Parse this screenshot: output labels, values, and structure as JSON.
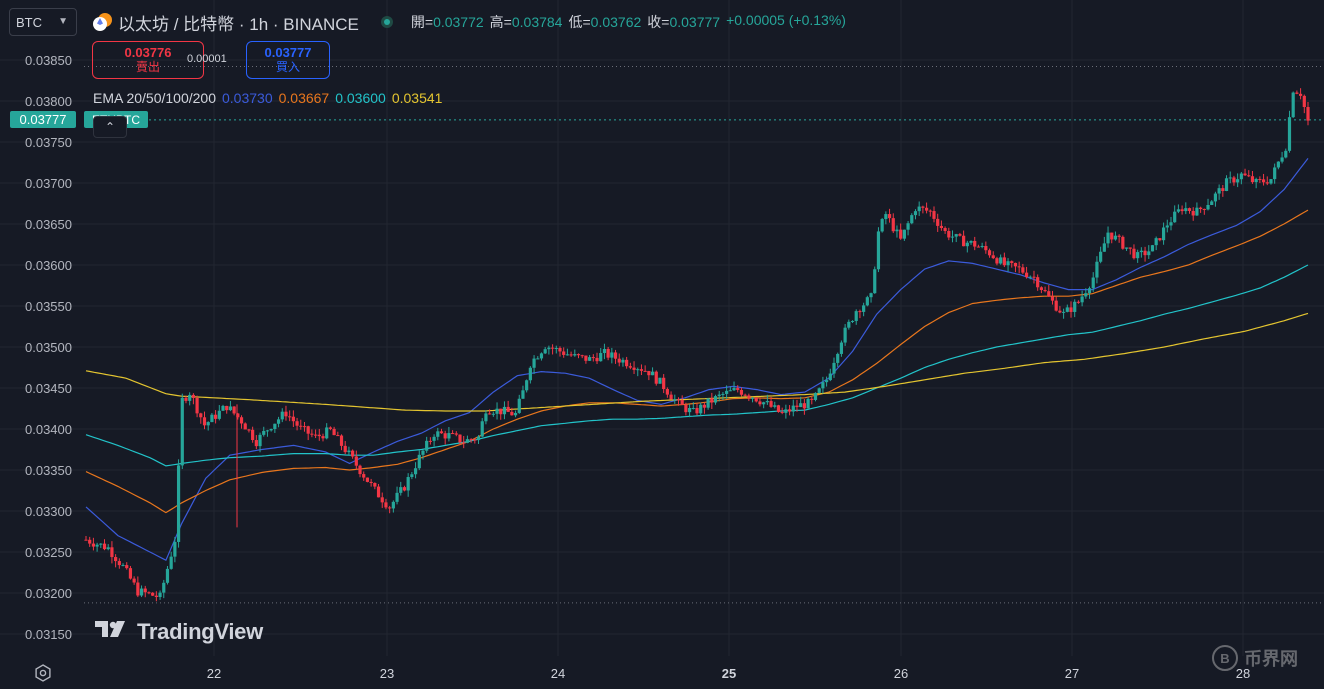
{
  "header": {
    "symbol_select": "BTC",
    "title": "以太坊 / 比特幣 · 1h · BINANCE",
    "ohlc": [
      {
        "label": "開=",
        "value": "0.03772"
      },
      {
        "label": "高=",
        "value": "0.03784"
      },
      {
        "label": "低=",
        "value": "0.03762"
      },
      {
        "label": "收=",
        "value": "0.03777"
      }
    ],
    "change": "+0.00005 (+0.13%)"
  },
  "trade": {
    "sell_price": "0.03776",
    "sell_label": "賣出",
    "spread": "0.00001",
    "buy_price": "0.03777",
    "buy_label": "買入"
  },
  "ema": {
    "label": "EMA 20/50/100/200",
    "values": [
      {
        "value": "0.03730",
        "color": "#3b5bdb"
      },
      {
        "value": "0.03667",
        "color": "#e8761d"
      },
      {
        "value": "0.03600",
        "color": "#22c3c9"
      },
      {
        "value": "0.03541",
        "color": "#e4c530"
      }
    ]
  },
  "current": {
    "price": "0.03777",
    "label": "ETHBTC"
  },
  "branding": {
    "logo_text": "TradingView",
    "watermark_text": "币界网"
  },
  "colors": {
    "up": "#26a69a",
    "down": "#f23645",
    "background": "#161a25",
    "grid": "#222631",
    "axis_text": "#b2b5be"
  },
  "chart_data": {
    "type": "candlestick",
    "yticks": [
      "0.03850",
      "0.03800",
      "0.03750",
      "0.03700",
      "0.03650",
      "0.03600",
      "0.03550",
      "0.03500",
      "0.03450",
      "0.03400",
      "0.03350",
      "0.03300",
      "0.03250",
      "0.03200",
      "0.03150"
    ],
    "ylim": [
      0.0313,
      0.0388
    ],
    "xticks": [
      {
        "label": "22",
        "day": 22,
        "bold": false
      },
      {
        "label": "23",
        "day": 23,
        "bold": false
      },
      {
        "label": "24",
        "day": 24,
        "bold": false
      },
      {
        "label": "25",
        "day": 25,
        "bold": true
      },
      {
        "label": "26",
        "day": 26,
        "bold": false
      },
      {
        "label": "27",
        "day": 27,
        "bold": false
      },
      {
        "label": "28",
        "day": 28,
        "bold": false
      }
    ],
    "xlim_days": [
      21.42,
      22.95
    ],
    "high_line": 0.03842,
    "low_line": 0.03188,
    "current_price": 0.03777,
    "ema_anchors": {
      "ema20": [
        [
          0,
          0.03305
        ],
        [
          8,
          0.0327
        ],
        [
          16,
          0.0325
        ],
        [
          20,
          0.0324
        ],
        [
          24,
          0.03285
        ],
        [
          30,
          0.0334
        ],
        [
          36,
          0.03368
        ],
        [
          44,
          0.03375
        ],
        [
          52,
          0.0338
        ],
        [
          60,
          0.03372
        ],
        [
          66,
          0.03358
        ],
        [
          72,
          0.03372
        ],
        [
          78,
          0.03385
        ],
        [
          84,
          0.03395
        ],
        [
          90,
          0.0341
        ],
        [
          96,
          0.0342
        ],
        [
          102,
          0.03445
        ],
        [
          108,
          0.03465
        ],
        [
          114,
          0.0347
        ],
        [
          120,
          0.03468
        ],
        [
          126,
          0.03462
        ],
        [
          132,
          0.03448
        ],
        [
          138,
          0.03435
        ],
        [
          144,
          0.0343
        ],
        [
          150,
          0.03438
        ],
        [
          156,
          0.03448
        ],
        [
          162,
          0.03452
        ],
        [
          168,
          0.03448
        ],
        [
          174,
          0.03442
        ],
        [
          180,
          0.03445
        ],
        [
          186,
          0.03462
        ],
        [
          192,
          0.03495
        ],
        [
          198,
          0.0354
        ],
        [
          204,
          0.0357
        ],
        [
          210,
          0.03595
        ],
        [
          216,
          0.03605
        ],
        [
          222,
          0.03602
        ],
        [
          228,
          0.03595
        ],
        [
          234,
          0.03588
        ],
        [
          240,
          0.03578
        ],
        [
          246,
          0.0357
        ],
        [
          252,
          0.0357
        ],
        [
          258,
          0.03582
        ],
        [
          264,
          0.03597
        ],
        [
          270,
          0.0361
        ],
        [
          276,
          0.03625
        ],
        [
          282,
          0.03637
        ],
        [
          288,
          0.03648
        ],
        [
          294,
          0.03665
        ],
        [
          300,
          0.03692
        ],
        [
          306,
          0.0373
        ]
      ],
      "ema50": [
        [
          0,
          0.03348
        ],
        [
          8,
          0.0333
        ],
        [
          16,
          0.0331
        ],
        [
          20,
          0.03298
        ],
        [
          24,
          0.0331
        ],
        [
          30,
          0.03325
        ],
        [
          36,
          0.03338
        ],
        [
          44,
          0.03347
        ],
        [
          52,
          0.03352
        ],
        [
          60,
          0.03353
        ],
        [
          66,
          0.0335
        ],
        [
          72,
          0.03353
        ],
        [
          78,
          0.03357
        ],
        [
          84,
          0.03365
        ],
        [
          90,
          0.03375
        ],
        [
          96,
          0.03385
        ],
        [
          102,
          0.034
        ],
        [
          108,
          0.03412
        ],
        [
          114,
          0.03422
        ],
        [
          120,
          0.03428
        ],
        [
          126,
          0.03432
        ],
        [
          132,
          0.03432
        ],
        [
          138,
          0.0343
        ],
        [
          144,
          0.03428
        ],
        [
          150,
          0.0343
        ],
        [
          156,
          0.03433
        ],
        [
          162,
          0.03437
        ],
        [
          168,
          0.03438
        ],
        [
          174,
          0.03437
        ],
        [
          180,
          0.03438
        ],
        [
          186,
          0.03445
        ],
        [
          192,
          0.0346
        ],
        [
          198,
          0.0348
        ],
        [
          204,
          0.03503
        ],
        [
          210,
          0.03525
        ],
        [
          216,
          0.03542
        ],
        [
          222,
          0.03553
        ],
        [
          228,
          0.03557
        ],
        [
          234,
          0.0356
        ],
        [
          240,
          0.03562
        ],
        [
          246,
          0.03562
        ],
        [
          252,
          0.03565
        ],
        [
          258,
          0.03575
        ],
        [
          264,
          0.03585
        ],
        [
          270,
          0.03592
        ],
        [
          276,
          0.036
        ],
        [
          282,
          0.03612
        ],
        [
          288,
          0.03623
        ],
        [
          294,
          0.03635
        ],
        [
          300,
          0.0365
        ],
        [
          306,
          0.03667
        ]
      ],
      "ema100": [
        [
          0,
          0.03393
        ],
        [
          8,
          0.0338
        ],
        [
          16,
          0.03365
        ],
        [
          20,
          0.03355
        ],
        [
          24,
          0.03358
        ],
        [
          30,
          0.03362
        ],
        [
          36,
          0.03365
        ],
        [
          44,
          0.03367
        ],
        [
          52,
          0.0337
        ],
        [
          60,
          0.0337
        ],
        [
          66,
          0.03368
        ],
        [
          72,
          0.03368
        ],
        [
          78,
          0.03372
        ],
        [
          84,
          0.03375
        ],
        [
          90,
          0.0338
        ],
        [
          96,
          0.03385
        ],
        [
          102,
          0.03392
        ],
        [
          108,
          0.03398
        ],
        [
          114,
          0.03404
        ],
        [
          120,
          0.03407
        ],
        [
          126,
          0.0341
        ],
        [
          132,
          0.03412
        ],
        [
          138,
          0.03412
        ],
        [
          144,
          0.03413
        ],
        [
          150,
          0.03415
        ],
        [
          156,
          0.03417
        ],
        [
          162,
          0.03418
        ],
        [
          168,
          0.0342
        ],
        [
          174,
          0.03422
        ],
        [
          180,
          0.03423
        ],
        [
          186,
          0.0343
        ],
        [
          192,
          0.03438
        ],
        [
          198,
          0.0345
        ],
        [
          204,
          0.03462
        ],
        [
          210,
          0.03475
        ],
        [
          216,
          0.03485
        ],
        [
          222,
          0.03493
        ],
        [
          228,
          0.035
        ],
        [
          234,
          0.03505
        ],
        [
          240,
          0.0351
        ],
        [
          246,
          0.03515
        ],
        [
          252,
          0.03518
        ],
        [
          258,
          0.03525
        ],
        [
          264,
          0.03532
        ],
        [
          270,
          0.0354
        ],
        [
          276,
          0.03547
        ],
        [
          282,
          0.03555
        ],
        [
          288,
          0.03563
        ],
        [
          294,
          0.03572
        ],
        [
          300,
          0.03585
        ],
        [
          306,
          0.036
        ]
      ],
      "ema200": [
        [
          0,
          0.03471
        ],
        [
          10,
          0.03462
        ],
        [
          20,
          0.03443
        ],
        [
          24,
          0.0344
        ],
        [
          40,
          0.03436
        ],
        [
          60,
          0.0343
        ],
        [
          80,
          0.03423
        ],
        [
          90,
          0.03422
        ],
        [
          100,
          0.03422
        ],
        [
          110,
          0.03425
        ],
        [
          120,
          0.03428
        ],
        [
          130,
          0.03431
        ],
        [
          140,
          0.03434
        ],
        [
          150,
          0.03436
        ],
        [
          160,
          0.03438
        ],
        [
          170,
          0.0344
        ],
        [
          180,
          0.03442
        ],
        [
          190,
          0.03445
        ],
        [
          200,
          0.03452
        ],
        [
          210,
          0.0346
        ],
        [
          220,
          0.03468
        ],
        [
          230,
          0.03474
        ],
        [
          240,
          0.03481
        ],
        [
          250,
          0.03485
        ],
        [
          260,
          0.03492
        ],
        [
          270,
          0.035
        ],
        [
          280,
          0.0351
        ],
        [
          290,
          0.03519
        ],
        [
          300,
          0.03532
        ],
        [
          306,
          0.03541
        ]
      ]
    },
    "candle_anchors": [
      [
        0,
        0.03265
      ],
      [
        6,
        0.03255
      ],
      [
        10,
        0.03232
      ],
      [
        14,
        0.03202
      ],
      [
        20,
        0.03195
      ],
      [
        24,
        0.03265
      ],
      [
        26,
        0.03435
      ],
      [
        28,
        0.03445
      ],
      [
        32,
        0.03405
      ],
      [
        38,
        0.03428
      ],
      [
        42,
        0.0341
      ],
      [
        46,
        0.03385
      ],
      [
        50,
        0.03405
      ],
      [
        54,
        0.0342
      ],
      [
        58,
        0.034
      ],
      [
        62,
        0.0339
      ],
      [
        66,
        0.03398
      ],
      [
        70,
        0.03375
      ],
      [
        74,
        0.0335
      ],
      [
        78,
        0.03325
      ],
      [
        82,
        0.03305
      ],
      [
        86,
        0.0333
      ],
      [
        90,
        0.03365
      ],
      [
        94,
        0.03395
      ],
      [
        98,
        0.03392
      ],
      [
        102,
        0.03385
      ],
      [
        106,
        0.0339
      ],
      [
        108,
        0.03425
      ],
      [
        112,
        0.03422
      ],
      [
        116,
        0.03418
      ],
      [
        118,
        0.03445
      ],
      [
        120,
        0.0348
      ],
      [
        124,
        0.03502
      ],
      [
        128,
        0.03495
      ],
      [
        132,
        0.03488
      ],
      [
        136,
        0.03485
      ],
      [
        140,
        0.03492
      ],
      [
        144,
        0.03485
      ],
      [
        148,
        0.03478
      ],
      [
        152,
        0.0347
      ],
      [
        156,
        0.03452
      ],
      [
        160,
        0.0343
      ],
      [
        164,
        0.0342
      ],
      [
        168,
        0.03432
      ],
      [
        172,
        0.03442
      ],
      [
        176,
        0.03448
      ],
      [
        180,
        0.0344
      ],
      [
        184,
        0.0343
      ],
      [
        188,
        0.03418
      ],
      [
        192,
        0.03428
      ],
      [
        196,
        0.03432
      ],
      [
        200,
        0.0346
      ],
      [
        204,
        0.0351
      ],
      [
        208,
        0.03545
      ],
      [
        212,
        0.0356
      ],
      [
        214,
        0.0364
      ],
      [
        216,
        0.03662
      ],
      [
        220,
        0.0363
      ],
      [
        224,
        0.0367
      ],
      [
        228,
        0.03665
      ],
      [
        232,
        0.0364
      ],
      [
        236,
        0.0363
      ],
      [
        240,
        0.03625
      ],
      [
        244,
        0.03615
      ],
      [
        248,
        0.036
      ],
      [
        252,
        0.03595
      ],
      [
        256,
        0.03585
      ],
      [
        260,
        0.0356
      ],
      [
        264,
        0.0354
      ],
      [
        268,
        0.03555
      ],
      [
        272,
        0.03585
      ],
      [
        276,
        0.0364
      ],
      [
        280,
        0.03625
      ],
      [
        284,
        0.0361
      ],
      [
        288,
        0.0362
      ],
      [
        292,
        0.0365
      ],
      [
        296,
        0.0367
      ],
      [
        300,
        0.03665
      ],
      [
        304,
        0.0368
      ],
      [
        308,
        0.037
      ],
      [
        312,
        0.0371
      ],
      [
        316,
        0.037
      ],
      [
        320,
        0.03705
      ],
      [
        324,
        0.03745
      ],
      [
        326,
        0.03815
      ],
      [
        328,
        0.0381
      ],
      [
        330,
        0.03775
      ]
    ]
  }
}
